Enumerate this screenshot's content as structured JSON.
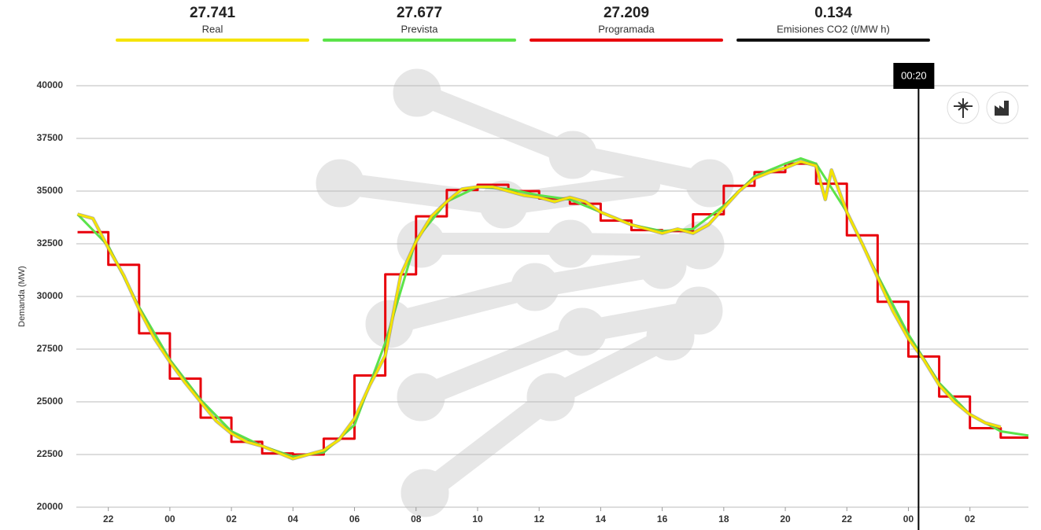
{
  "chart_data": {
    "type": "line",
    "summary": [
      {
        "value": 27.741,
        "label": "Real",
        "color": "#f5e400"
      },
      {
        "value": 27.677,
        "label": "Prevista",
        "color": "#5be34a"
      },
      {
        "value": 27.209,
        "label": "Programada",
        "color": "#e8000b"
      },
      {
        "value": 0.134,
        "label": "Emisiones CO2 (t/MW h)",
        "color": "#111111"
      }
    ],
    "y_label": "Demanda (MW)",
    "xlim": [
      -3.04,
      27.9
    ],
    "xticks": [
      {
        "value": -2,
        "label": "22"
      },
      {
        "value": 0,
        "label": "00"
      },
      {
        "value": 2,
        "label": "02"
      },
      {
        "value": 4,
        "label": "04"
      },
      {
        "value": 6,
        "label": "06"
      },
      {
        "value": 8,
        "label": "08"
      },
      10,
      12,
      14,
      16,
      18,
      20,
      22,
      {
        "value": 24,
        "label": "00"
      },
      {
        "value": 26,
        "label": "02"
      }
    ],
    "ylim": [
      20000,
      40000
    ],
    "yticks": [
      20000,
      22500,
      25000,
      27500,
      30000,
      32500,
      35000,
      37500,
      40000
    ],
    "grid": true,
    "cursor": {
      "x": 24.33,
      "label": "00:20"
    },
    "series": [
      {
        "name": "Programada",
        "color": "#e8000b",
        "step": "post",
        "x": [
          -3,
          -2,
          -1,
          0,
          1,
          2,
          3,
          4,
          5,
          6,
          7,
          8,
          9,
          10,
          11,
          12,
          13,
          14,
          15,
          16,
          17,
          18,
          19,
          20,
          21,
          22,
          23,
          24,
          25,
          26,
          27
        ],
        "values": [
          33050,
          31500,
          28250,
          26100,
          24250,
          23100,
          22550,
          22500,
          23250,
          26250,
          31050,
          33800,
          35050,
          35300,
          35000,
          34650,
          34400,
          33600,
          33150,
          33100,
          33900,
          35250,
          35900,
          36300,
          35350,
          32900,
          29750,
          27150,
          25250,
          23750,
          23300
        ]
      },
      {
        "name": "Prevista",
        "color": "#5be34a",
        "x": [
          -3,
          -2,
          -1,
          0,
          1,
          2,
          3,
          4,
          5,
          6,
          7,
          8,
          9,
          10,
          11,
          12,
          13,
          14,
          15,
          16,
          17,
          18,
          19,
          20,
          20.5,
          21,
          22,
          23,
          24,
          25,
          26,
          27,
          27.9
        ],
        "values": [
          33900,
          32400,
          29500,
          27000,
          25100,
          23600,
          22900,
          22400,
          22600,
          23900,
          27800,
          32700,
          34500,
          35200,
          35100,
          34800,
          34600,
          34000,
          33400,
          33100,
          33200,
          34300,
          35700,
          36300,
          36550,
          36300,
          34000,
          31000,
          28200,
          25900,
          24400,
          23600,
          23400
        ]
      },
      {
        "name": "Real",
        "color": "#f5e400",
        "x": [
          -3,
          -2.5,
          -2,
          -1.5,
          -1,
          -0.5,
          0,
          0.5,
          1,
          1.5,
          2,
          2.5,
          3,
          3.5,
          4,
          4.5,
          5,
          5.5,
          6,
          6.5,
          7,
          7.5,
          8,
          8.5,
          9,
          9.5,
          10,
          10.5,
          11,
          11.5,
          12,
          12.5,
          13,
          13.5,
          14,
          14.5,
          15,
          15.5,
          16,
          16.5,
          17,
          17.5,
          18,
          18.5,
          19,
          19.5,
          20,
          20.5,
          21,
          21.3,
          21.5,
          22,
          22.5,
          23,
          23.5,
          24,
          24.5,
          25,
          25.5,
          26,
          26.5,
          27
        ],
        "values": [
          33900,
          33700,
          32300,
          31000,
          29400,
          28000,
          26900,
          25900,
          25000,
          24100,
          23500,
          23100,
          22900,
          22600,
          22300,
          22500,
          22700,
          23200,
          24200,
          25800,
          27200,
          31000,
          32600,
          33800,
          34500,
          35100,
          35200,
          35200,
          35000,
          34800,
          34700,
          34500,
          34700,
          34500,
          34000,
          33700,
          33400,
          33200,
          33000,
          33200,
          33000,
          33400,
          34200,
          35000,
          35600,
          35900,
          36100,
          36400,
          36200,
          34600,
          36000,
          34000,
          32500,
          30900,
          29300,
          28000,
          27000,
          25800,
          25000,
          24400,
          24000,
          23800
        ]
      }
    ]
  }
}
